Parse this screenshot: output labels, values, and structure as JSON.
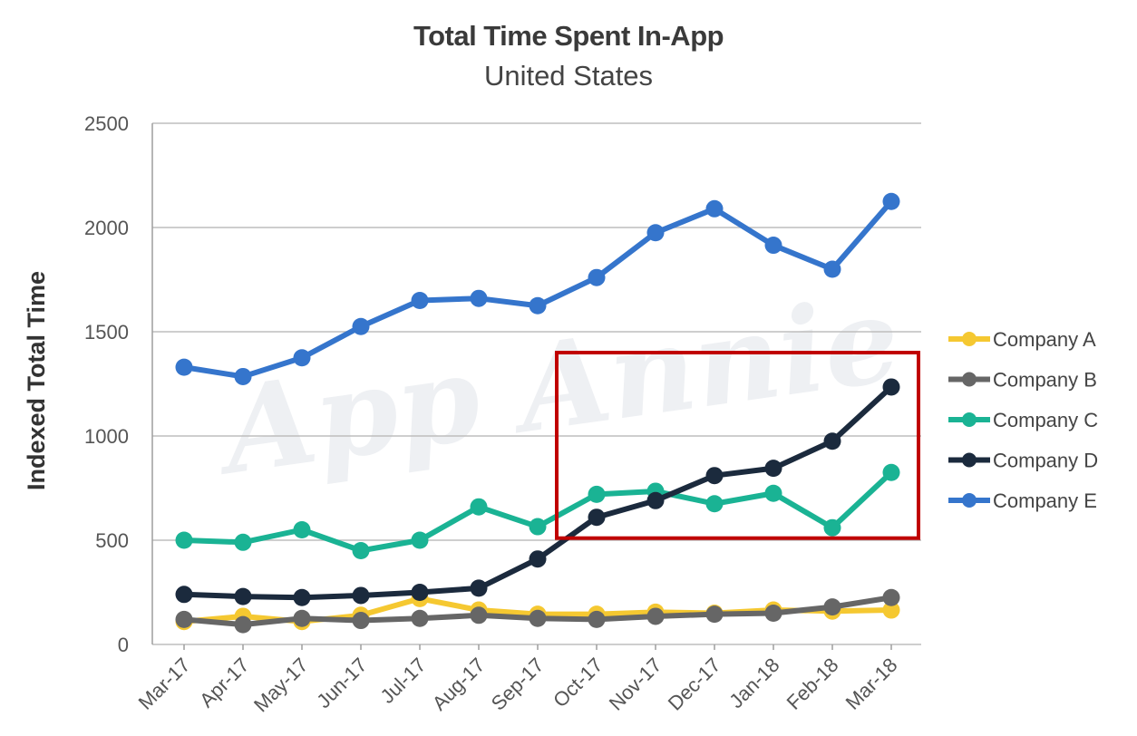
{
  "chart_data": {
    "type": "line",
    "title": "Total Time Spent In-App",
    "subtitle": "United States",
    "xlabel": "",
    "ylabel": "Indexed Total Time",
    "ylim": [
      0,
      2500
    ],
    "yticks": [
      "0",
      "500",
      "1000",
      "1500",
      "2000",
      "2500"
    ],
    "grid": true,
    "legend_position": "right",
    "watermark": "App Annie",
    "categories": [
      "Mar-17",
      "Apr-17",
      "May-17",
      "Jun-17",
      "Jul-17",
      "Aug-17",
      "Sep-17",
      "Oct-17",
      "Nov-17",
      "Dec-17",
      "Jan-18",
      "Feb-18",
      "Mar-18"
    ],
    "series": [
      {
        "name": "Company A",
        "color": "#f5c831",
        "values": [
          110,
          135,
          110,
          140,
          220,
          165,
          145,
          145,
          155,
          150,
          165,
          160,
          165
        ]
      },
      {
        "name": "Company B",
        "color": "#666666",
        "values": [
          120,
          95,
          125,
          115,
          125,
          140,
          125,
          120,
          135,
          145,
          150,
          180,
          225
        ]
      },
      {
        "name": "Company C",
        "color": "#1ab394",
        "values": [
          500,
          490,
          550,
          450,
          500,
          660,
          565,
          720,
          735,
          675,
          725,
          560,
          825
        ]
      },
      {
        "name": "Company D",
        "color": "#1b2a3d",
        "values": [
          240,
          230,
          225,
          235,
          250,
          270,
          410,
          610,
          690,
          810,
          845,
          975,
          1235
        ]
      },
      {
        "name": "Company E",
        "color": "#3575cc",
        "values": [
          1330,
          1285,
          1375,
          1525,
          1650,
          1660,
          1625,
          1760,
          1975,
          2090,
          1915,
          1800,
          2125
        ]
      }
    ],
    "highlight": {
      "color": "#c00000",
      "from_category": "Oct-17",
      "to_category": "Mar-18",
      "y_range": [
        510,
        1400
      ]
    }
  }
}
